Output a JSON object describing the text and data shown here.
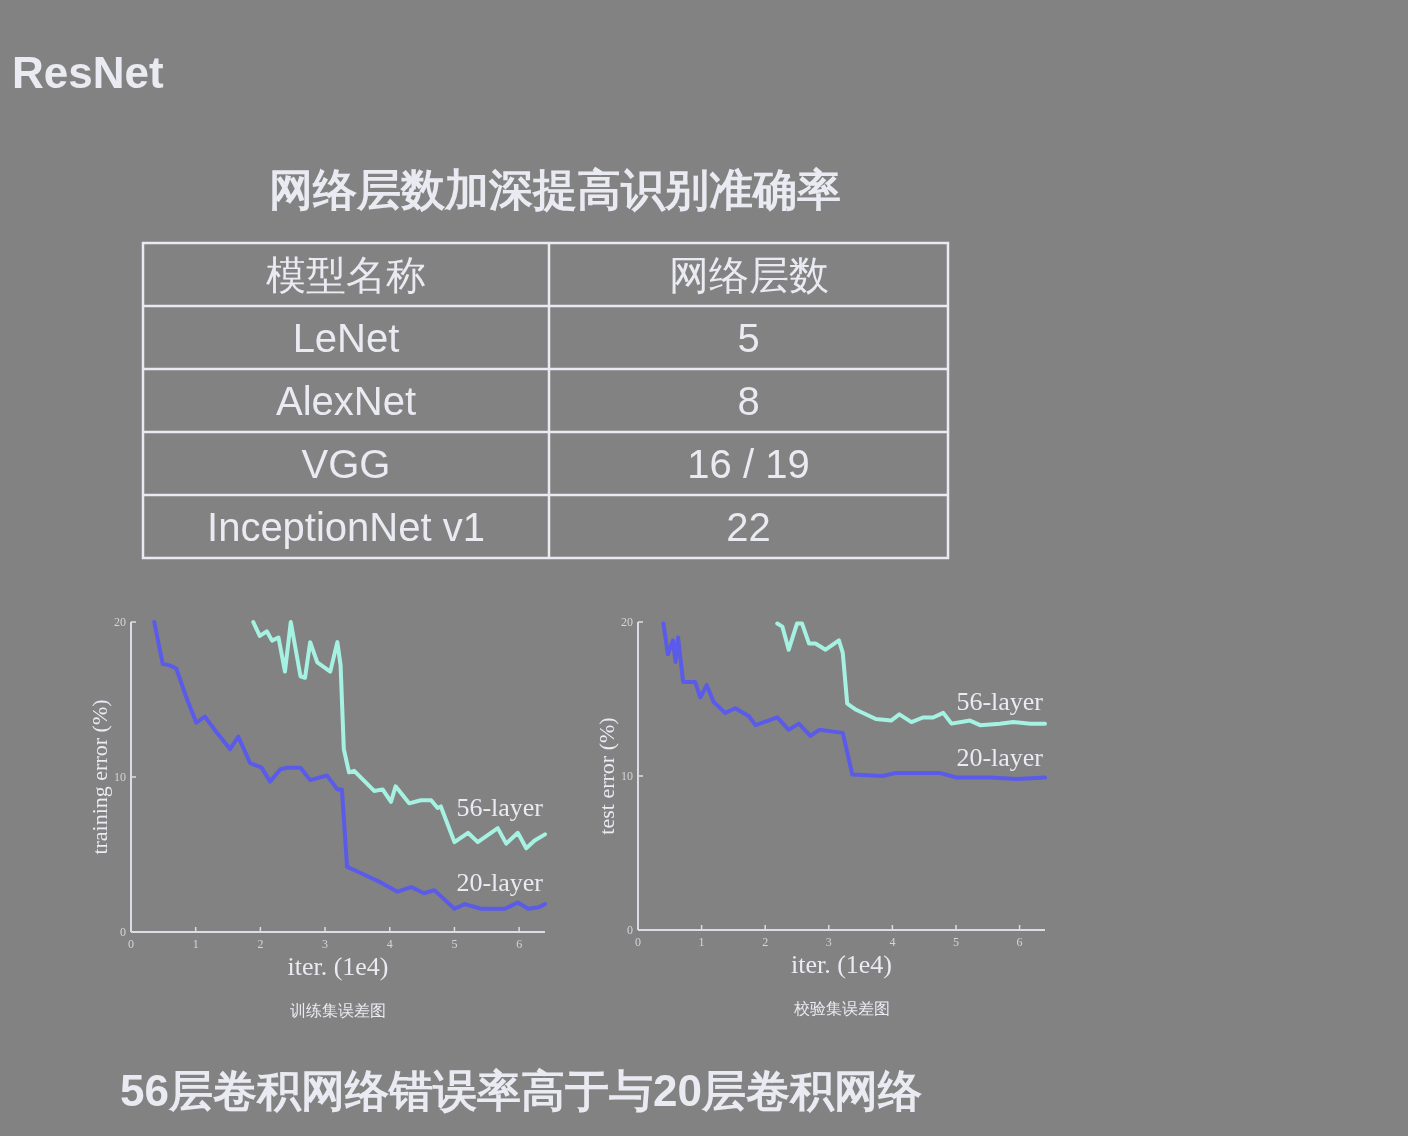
{
  "chart_data": [
    {
      "type": "other",
      "title": "ResNet",
      "subtitle": "网络层数加深提高识别准确率",
      "xlabel": "模型名称",
      "ylabel": "网络层数",
      "categories": [
        "LeNet",
        "AlexNet",
        "VGG",
        "InceptionNet v1"
      ],
      "value_labels": [
        "5",
        "8",
        "16 / 19",
        "22"
      ],
      "annotations": [
        "56层卷积网络错误率高于与20层卷积网络"
      ]
    },
    {
      "type": "line",
      "xlabel": "iter. (1e4)",
      "ylabel": "training error (%)",
      "xlim": [
        0,
        6.4
      ],
      "ylim": [
        0,
        20
      ],
      "xticks": [
        0,
        1,
        2,
        3,
        4,
        5,
        6
      ],
      "yticks": [
        0,
        10,
        20
      ],
      "series": [
        {
          "name": "56-layer",
          "color": "#a6f2e2",
          "x": [
            1.89,
            1.99,
            2.1,
            2.18,
            2.28,
            2.38,
            2.47,
            2.62,
            2.69,
            2.77,
            2.88,
            3.08,
            3.19,
            3.24,
            3.29,
            3.37,
            3.45,
            3.76,
            3.89,
            4.02,
            4.09,
            4.3,
            4.48,
            4.64,
            4.74,
            4.79,
            5.0,
            5.21,
            5.36,
            5.67,
            5.8,
            5.98,
            6.11,
            6.24,
            6.4
          ],
          "values": [
            20.0,
            19.1,
            19.4,
            18.8,
            19.0,
            16.8,
            20.0,
            16.5,
            16.4,
            18.7,
            17.4,
            16.8,
            18.7,
            17.2,
            11.8,
            10.3,
            10.4,
            9.1,
            9.2,
            8.4,
            9.4,
            8.3,
            8.5,
            8.5,
            8.0,
            8.1,
            5.8,
            6.4,
            5.8,
            6.7,
            5.7,
            6.4,
            5.4,
            5.9,
            6.3
          ]
        },
        {
          "name": "20-layer",
          "color": "#5b5bea",
          "x": [
            0.36,
            0.49,
            0.6,
            0.7,
            0.85,
            1.01,
            1.14,
            1.32,
            1.53,
            1.66,
            1.84,
            2.02,
            2.15,
            2.31,
            2.41,
            2.62,
            2.77,
            3.03,
            3.19,
            3.26,
            3.34,
            3.5,
            3.86,
            4.12,
            4.33,
            4.53,
            4.69,
            5.0,
            5.16,
            5.41,
            5.78,
            5.98,
            6.14,
            6.3,
            6.4
          ],
          "values": [
            20.0,
            17.3,
            17.2,
            17.0,
            15.2,
            13.5,
            13.9,
            12.9,
            11.8,
            12.6,
            10.9,
            10.6,
            9.7,
            10.5,
            10.6,
            10.6,
            9.8,
            10.1,
            9.2,
            9.2,
            4.2,
            3.9,
            3.2,
            2.6,
            2.9,
            2.5,
            2.7,
            1.5,
            1.8,
            1.5,
            1.5,
            1.9,
            1.5,
            1.6,
            1.8
          ]
        }
      ],
      "annotations": [
        "训练集误差图"
      ]
    },
    {
      "type": "line",
      "xlabel": "iter. (1e4)",
      "ylabel": "test error (%)",
      "xlim": [
        0,
        6.4
      ],
      "ylim": [
        0,
        20
      ],
      "xticks": [
        0,
        1,
        2,
        3,
        4,
        5,
        6
      ],
      "yticks": [
        0,
        10,
        20
      ],
      "series": [
        {
          "name": "56-layer",
          "color": "#a6f2e2",
          "x": [
            2.19,
            2.27,
            2.37,
            2.5,
            2.58,
            2.69,
            2.79,
            2.95,
            3.16,
            3.22,
            3.29,
            3.43,
            3.74,
            3.98,
            4.11,
            4.3,
            4.48,
            4.64,
            4.8,
            4.93,
            5.22,
            5.38,
            5.69,
            5.9,
            6.17,
            6.4
          ],
          "values": [
            19.9,
            19.7,
            18.2,
            19.9,
            19.9,
            18.6,
            18.6,
            18.2,
            18.8,
            18.0,
            14.7,
            14.3,
            13.7,
            13.6,
            14.0,
            13.5,
            13.8,
            13.8,
            14.1,
            13.4,
            13.6,
            13.3,
            13.4,
            13.5,
            13.4,
            13.4
          ]
        },
        {
          "name": "20-layer",
          "color": "#5b5bea",
          "x": [
            0.4,
            0.47,
            0.55,
            0.59,
            0.63,
            0.71,
            0.9,
            0.98,
            1.08,
            1.19,
            1.37,
            1.53,
            1.74,
            1.85,
            2.19,
            2.37,
            2.53,
            2.71,
            2.85,
            3.22,
            3.37,
            3.85,
            4.06,
            4.74,
            5.01,
            5.54,
            5.96,
            6.4
          ],
          "values": [
            19.9,
            17.9,
            18.8,
            17.4,
            19.0,
            16.1,
            16.1,
            15.1,
            15.9,
            14.8,
            14.1,
            14.4,
            13.9,
            13.3,
            13.8,
            13.0,
            13.4,
            12.6,
            13.0,
            12.8,
            10.1,
            10.0,
            10.2,
            10.2,
            9.9,
            9.9,
            9.8,
            9.9
          ]
        }
      ],
      "annotations": [
        "校验集误差图"
      ]
    }
  ]
}
